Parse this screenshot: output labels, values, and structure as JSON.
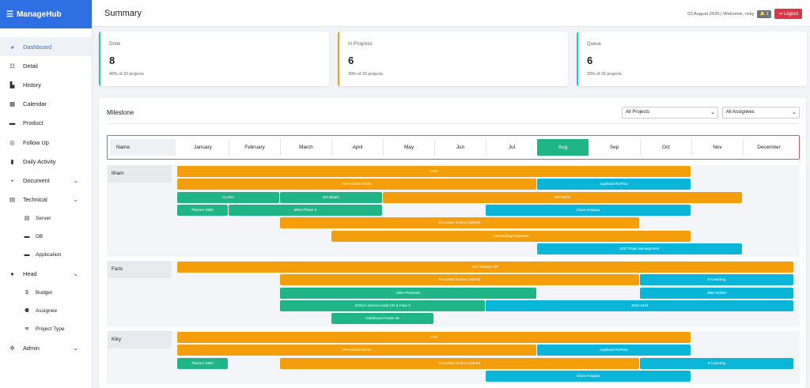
{
  "app": {
    "brand": "ManageHub",
    "page_title": "Summary"
  },
  "header": {
    "date_text": "03 August 2026 | Welcome, ricky",
    "notif_count": "1",
    "logout_label": "Logout"
  },
  "sidebar": {
    "items": [
      {
        "label": "Dashboard",
        "icon": "dashboard-icon",
        "active": true
      },
      {
        "label": "Detail",
        "icon": "list-icon"
      },
      {
        "label": "History",
        "icon": "chart-icon"
      },
      {
        "label": "Calendar",
        "icon": "calendar-icon"
      },
      {
        "label": "Product",
        "icon": "box-icon"
      },
      {
        "label": "Follow Up",
        "icon": "target-icon"
      },
      {
        "label": "Daily Activity",
        "icon": "clipboard-icon"
      },
      {
        "label": "Document",
        "icon": "file-icon",
        "expandable": true
      },
      {
        "label": "Technical",
        "icon": "server-icon",
        "expandable": true
      }
    ],
    "technical_sub": [
      {
        "label": "Server",
        "icon": "server-icon"
      },
      {
        "label": "DB",
        "icon": "database-icon"
      },
      {
        "label": "Application",
        "icon": "window-icon"
      }
    ],
    "head": {
      "label": "Head",
      "icon": "user-icon"
    },
    "head_sub": [
      {
        "label": "Budget",
        "icon": "dollar-icon"
      },
      {
        "label": "Assignee",
        "icon": "users-icon"
      },
      {
        "label": "Project Type",
        "icon": "layers-icon"
      }
    ],
    "admin": {
      "label": "Admin",
      "icon": "cog-icon"
    }
  },
  "stats": [
    {
      "label": "Done",
      "value": "8",
      "sub": "40% of 20 projects",
      "color": "#20c997"
    },
    {
      "label": "In Progress",
      "value": "6",
      "sub": "30% of 20 projects",
      "color": "#f59e0b"
    },
    {
      "label": "Queue",
      "value": "6",
      "sub": "30% of 20 projects",
      "color": "#0dcaf0"
    }
  ],
  "milestone": {
    "title": "Milestone",
    "filter_projects": "All Projects",
    "filter_assignees": "All Assignees",
    "name_header": "Name",
    "months": [
      "January",
      "February",
      "March",
      "April",
      "May",
      "Jun",
      "Jul",
      "Aug",
      "Sep",
      "Oct",
      "Nov",
      "December"
    ],
    "active_month": "Aug",
    "colors": {
      "orange": "#f59e0b",
      "green": "#1fb584",
      "cyan": "#0bb5d8"
    },
    "people": [
      {
        "name": "Ilham",
        "bars": [
          {
            "label": "IAM",
            "start": 0,
            "end": 10,
            "row": 0,
            "color": "orange"
          },
          {
            "label": "RPA BOBO NGW",
            "start": 0,
            "end": 7,
            "row": 1,
            "color": "orange"
          },
          {
            "label": "Applikasi RUPSU",
            "start": 7,
            "end": 10,
            "row": 1,
            "color": "cyan"
          },
          {
            "label": "CLARA",
            "start": 0,
            "end": 2,
            "row": 2,
            "color": "green"
          },
          {
            "label": "WA Blasts",
            "start": 2,
            "end": 4,
            "row": 2,
            "color": "green"
          },
          {
            "label": "RPA BDO",
            "start": 4,
            "end": 11,
            "row": 2,
            "color": "orange"
          },
          {
            "label": "Planner SMD",
            "start": 0,
            "end": 1,
            "row": 3,
            "color": "green"
          },
          {
            "label": "MOS Phase II",
            "start": 1,
            "end": 4,
            "row": 3,
            "color": "green"
          },
          {
            "label": "Clara Arrajasa",
            "start": 6,
            "end": 10,
            "row": 3,
            "color": "cyan"
          },
          {
            "label": "E-Locked Invoice (Jobret)",
            "start": 2,
            "end": 9,
            "row": 4,
            "color": "orange"
          },
          {
            "label": "Onboarding Karyawan",
            "start": 3,
            "end": 10,
            "row": 5,
            "color": "orange"
          },
          {
            "label": "E2E Projet Management",
            "start": 7,
            "end": 11,
            "row": 6,
            "color": "cyan"
          }
        ]
      },
      {
        "name": "Faris",
        "bars": [
          {
            "label": "SAP Dwaste OP",
            "start": 0,
            "end": 12,
            "row": 0,
            "color": "orange"
          },
          {
            "label": "E-Locked Invoice (Jobret)",
            "start": 2,
            "end": 9,
            "row": 1,
            "color": "orange"
          },
          {
            "label": "E-Learning",
            "start": 9,
            "end": 12,
            "row": 1,
            "color": "cyan"
          },
          {
            "label": "JIWA Premises",
            "start": 2,
            "end": 7,
            "row": 2,
            "color": "green"
          },
          {
            "label": "JIWA BOBO",
            "start": 9,
            "end": 12,
            "row": 2,
            "color": "cyan"
          },
          {
            "label": "JOSUA Internal Audit CR & Fase 2",
            "start": 2,
            "end": 6,
            "row": 3,
            "color": "green"
          },
          {
            "label": "JIWA SLM",
            "start": 6,
            "end": 12,
            "row": 3,
            "color": "cyan"
          },
          {
            "label": "Dashboard Power BI",
            "start": 3,
            "end": 5,
            "row": 4,
            "color": "green"
          }
        ]
      },
      {
        "name": "Kiky",
        "bars": [
          {
            "label": "IAM",
            "start": 0,
            "end": 10,
            "row": 0,
            "color": "orange"
          },
          {
            "label": "RPA BOBO NGW",
            "start": 0,
            "end": 7,
            "row": 1,
            "color": "orange"
          },
          {
            "label": "Applikasi RUPSU",
            "start": 7,
            "end": 10,
            "row": 1,
            "color": "cyan"
          },
          {
            "label": "Planner SMD",
            "start": 0,
            "end": 1,
            "row": 2,
            "color": "green"
          },
          {
            "label": "E-Locked Invoice (Jobret)",
            "start": 2,
            "end": 9,
            "row": 2,
            "color": "orange"
          },
          {
            "label": "E-Learning",
            "start": 9,
            "end": 12,
            "row": 2,
            "color": "cyan"
          },
          {
            "label": "Clara Arrajasa",
            "start": 6,
            "end": 10,
            "row": 3,
            "color": "cyan"
          }
        ]
      }
    ]
  }
}
